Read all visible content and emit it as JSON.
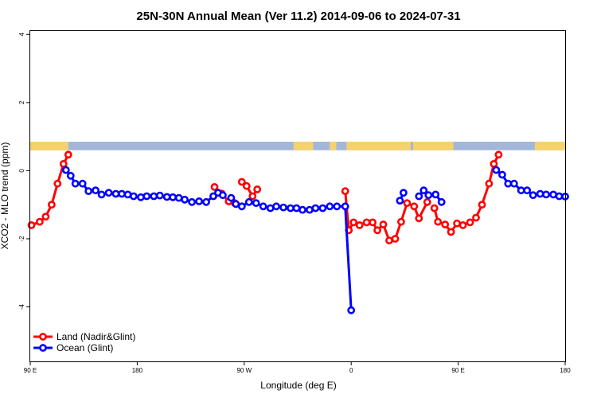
{
  "chart_data": {
    "type": "line",
    "title": "25N-30N Annual Mean (Ver 11.2)   2014-09-06 to 2024-07-31",
    "xlabel": "Longitude (deg E)",
    "ylabel": "XCO2 - MLO trend (ppm)",
    "xlim": [
      90,
      540
    ],
    "ylim": [
      -5.6,
      4.1
    ],
    "x_ticks": [
      {
        "value": 90,
        "label": "90 E"
      },
      {
        "value": 180,
        "label": "180"
      },
      {
        "value": 270,
        "label": "90 W"
      },
      {
        "value": 360,
        "label": "0"
      },
      {
        "value": 450,
        "label": "90 E"
      },
      {
        "value": 540,
        "label": "180"
      }
    ],
    "y_ticks": [
      4,
      2,
      0,
      -2,
      -4
    ],
    "legend_position": "bottom-left",
    "grid": false,
    "surface_band": {
      "y_range": [
        0.6,
        0.85
      ],
      "colors": {
        "land": "#f5d26e",
        "ocean": "#a3b7d8"
      },
      "land_x_ranges": [
        [
          90,
          122
        ],
        [
          311.5,
          328
        ],
        [
          342,
          347.5
        ],
        [
          356,
          410
        ],
        [
          412,
          446
        ],
        [
          514.5,
          542
        ]
      ]
    },
    "series": [
      {
        "name": "Land (Nadir&Glint)",
        "color": "#ff0000",
        "segments": [
          [
            [
              91,
              -1.6
            ],
            [
              98,
              -1.5
            ],
            [
              103,
              -1.35
            ],
            [
              108,
              -1.0
            ],
            [
              113,
              -0.38
            ],
            [
              118,
              0.2
            ],
            [
              122,
              0.47
            ]
          ],
          [
            [
              245,
              -0.48
            ],
            [
              251,
              -0.67
            ],
            [
              257,
              -0.9
            ],
            [
              262,
              -0.95
            ]
          ],
          [
            [
              268,
              -0.33
            ],
            [
              272,
              -0.45
            ],
            [
              277,
              -0.75
            ],
            [
              281,
              -0.55
            ]
          ],
          [
            [
              355,
              -0.6
            ],
            [
              358,
              -1.75
            ],
            [
              362,
              -1.52
            ],
            [
              367,
              -1.6
            ],
            [
              373,
              -1.52
            ],
            [
              378,
              -1.52
            ],
            [
              382,
              -1.75
            ],
            [
              387,
              -1.58
            ],
            [
              392,
              -2.05
            ],
            [
              397,
              -2.0
            ],
            [
              402,
              -1.5
            ],
            [
              407,
              -0.95
            ],
            [
              413,
              -1.05
            ],
            [
              417,
              -1.4
            ],
            [
              424,
              -0.92
            ]
          ],
          [
            [
              430,
              -1.1
            ],
            [
              433,
              -1.5
            ],
            [
              439,
              -1.58
            ],
            [
              444,
              -1.8
            ],
            [
              449,
              -1.55
            ],
            [
              454,
              -1.6
            ],
            [
              460,
              -1.52
            ],
            [
              465,
              -1.38
            ],
            [
              470,
              -1.0
            ],
            [
              476,
              -0.38
            ],
            [
              480,
              0.2
            ],
            [
              484,
              0.47
            ]
          ]
        ]
      },
      {
        "name": "Ocean (Glint)",
        "color": "#0000ff",
        "segments": [
          [
            [
              120,
              0.02
            ],
            [
              124,
              -0.15
            ],
            [
              128,
              -0.38
            ],
            [
              134,
              -0.38
            ],
            [
              139,
              -0.6
            ],
            [
              145,
              -0.58
            ],
            [
              150,
              -0.7
            ],
            [
              156,
              -0.65
            ],
            [
              162,
              -0.68
            ],
            [
              167,
              -0.68
            ],
            [
              172,
              -0.7
            ],
            [
              177,
              -0.75
            ],
            [
              183,
              -0.78
            ],
            [
              188,
              -0.75
            ],
            [
              194,
              -0.75
            ],
            [
              199,
              -0.73
            ],
            [
              205,
              -0.77
            ],
            [
              210,
              -0.78
            ],
            [
              215,
              -0.8
            ],
            [
              220,
              -0.85
            ],
            [
              226,
              -0.92
            ],
            [
              232,
              -0.9
            ],
            [
              238,
              -0.92
            ],
            [
              244,
              -0.75
            ],
            [
              248,
              -0.65
            ],
            [
              252,
              -0.72
            ]
          ],
          [
            [
              259,
              -0.8
            ],
            [
              263,
              -0.98
            ],
            [
              268,
              -1.05
            ],
            [
              274,
              -0.92
            ],
            [
              280,
              -0.95
            ],
            [
              286,
              -1.05
            ],
            [
              292,
              -1.1
            ],
            [
              297,
              -1.05
            ],
            [
              303,
              -1.08
            ],
            [
              309,
              -1.1
            ],
            [
              314,
              -1.1
            ],
            [
              319,
              -1.15
            ],
            [
              325,
              -1.15
            ],
            [
              330,
              -1.1
            ],
            [
              336,
              -1.1
            ],
            [
              342,
              -1.05
            ],
            [
              348,
              -1.05
            ],
            [
              355,
              -1.05
            ],
            [
              360,
              -4.1
            ]
          ],
          [
            [
              401,
              -0.88
            ],
            [
              404,
              -0.65
            ]
          ],
          [
            [
              417,
              -0.75
            ],
            [
              421,
              -0.58
            ],
            [
              425,
              -0.72
            ],
            [
              431,
              -0.7
            ],
            [
              436,
              -0.92
            ]
          ],
          [
            [
              482,
              0.02
            ],
            [
              487,
              -0.12
            ],
            [
              492,
              -0.38
            ],
            [
              497,
              -0.38
            ],
            [
              503,
              -0.58
            ],
            [
              508,
              -0.58
            ],
            [
              513,
              -0.72
            ],
            [
              519,
              -0.68
            ],
            [
              524,
              -0.7
            ],
            [
              530,
              -0.7
            ],
            [
              535,
              -0.75
            ],
            [
              540,
              -0.76
            ]
          ]
        ]
      }
    ]
  }
}
